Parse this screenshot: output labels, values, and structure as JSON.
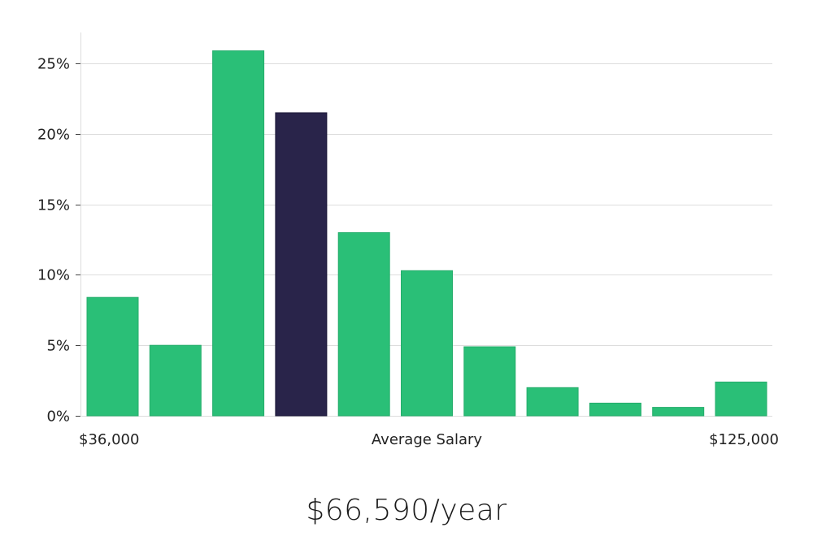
{
  "chart_data": {
    "type": "bar",
    "xlabel": "Average Salary",
    "x_range_labels": [
      "$36,000",
      "$125,000"
    ],
    "bins": 11,
    "values": [
      8.4,
      5.0,
      25.9,
      21.5,
      13.0,
      10.3,
      4.9,
      2.0,
      0.9,
      0.6,
      2.4
    ],
    "highlight_index": 3,
    "y_ticks": [
      "0%",
      "5%",
      "10%",
      "15%",
      "20%",
      "25%"
    ],
    "y_tick_values": [
      0,
      5,
      10,
      15,
      20,
      25
    ],
    "ylim": [
      0,
      27.2
    ],
    "grid": true,
    "colors": {
      "bar": "#2abf77",
      "highlight": "#29244a",
      "grid": "#dddddd"
    }
  },
  "summary": {
    "salary": "$66,590/year"
  }
}
